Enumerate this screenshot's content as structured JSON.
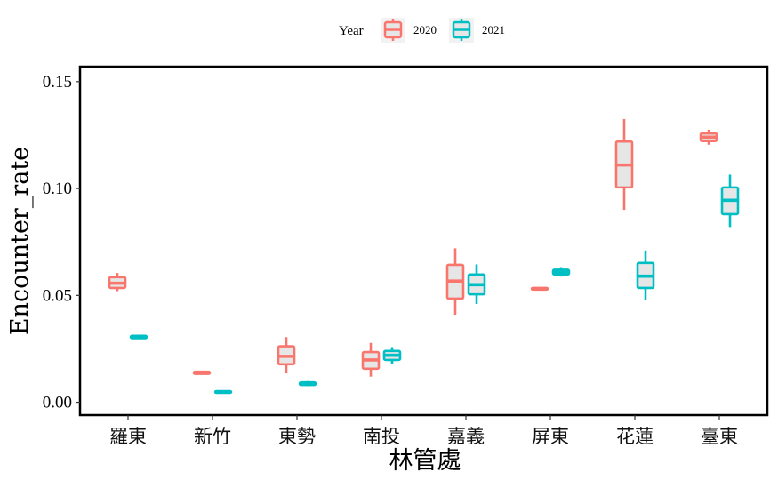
{
  "chart_data": {
    "type": "boxplot",
    "xlabel": "林管處",
    "ylabel": "Encounter_rate",
    "ylim": [
      -0.006,
      0.157
    ],
    "yticks": [
      0.0,
      0.05,
      0.1,
      0.15
    ],
    "ytick_labels": [
      "0.00",
      "0.05",
      "0.10",
      "0.15"
    ],
    "categories": [
      "羅東",
      "新竹",
      "東勢",
      "南投",
      "嘉義",
      "屏東",
      "花蓮",
      "臺東"
    ],
    "legend": {
      "title": "Year",
      "position": "top",
      "entries": [
        {
          "label": "2020",
          "color": "#F8766D"
        },
        {
          "label": "2021",
          "color": "#00BFC4"
        }
      ]
    },
    "series": [
      {
        "name": "2020",
        "color": "#F8766D",
        "boxes": [
          {
            "min": 0.052,
            "q1": 0.0535,
            "median": 0.0557,
            "q3": 0.0585,
            "max": 0.0605
          },
          {
            "min": 0.013,
            "q1": 0.0133,
            "median": 0.0138,
            "q3": 0.0143,
            "max": 0.0146
          },
          {
            "min": 0.0135,
            "q1": 0.0178,
            "median": 0.0215,
            "q3": 0.0262,
            "max": 0.0305
          },
          {
            "min": 0.012,
            "q1": 0.0157,
            "median": 0.0198,
            "q3": 0.0235,
            "max": 0.0278
          },
          {
            "min": 0.041,
            "q1": 0.0485,
            "median": 0.0567,
            "q3": 0.0643,
            "max": 0.072
          },
          {
            "min": 0.0523,
            "q1": 0.0527,
            "median": 0.0531,
            "q3": 0.0535,
            "max": 0.0539
          },
          {
            "min": 0.09,
            "q1": 0.1005,
            "median": 0.111,
            "q3": 0.122,
            "max": 0.1325
          },
          {
            "min": 0.1205,
            "q1": 0.1222,
            "median": 0.124,
            "q3": 0.1258,
            "max": 0.1275
          }
        ]
      },
      {
        "name": "2021",
        "color": "#00BFC4",
        "boxes": [
          {
            "min": 0.0296,
            "q1": 0.03,
            "median": 0.0305,
            "q3": 0.0311,
            "max": 0.0316
          },
          {
            "min": 0.004,
            "q1": 0.0044,
            "median": 0.0048,
            "q3": 0.0052,
            "max": 0.0056
          },
          {
            "min": 0.0076,
            "q1": 0.0081,
            "median": 0.0087,
            "q3": 0.0093,
            "max": 0.0099
          },
          {
            "min": 0.018,
            "q1": 0.0198,
            "median": 0.022,
            "q3": 0.024,
            "max": 0.0258
          },
          {
            "min": 0.046,
            "q1": 0.0505,
            "median": 0.055,
            "q3": 0.0598,
            "max": 0.0645
          },
          {
            "min": 0.0588,
            "q1": 0.0598,
            "median": 0.0608,
            "q3": 0.062,
            "max": 0.0632
          },
          {
            "min": 0.0478,
            "q1": 0.0535,
            "median": 0.059,
            "q3": 0.0652,
            "max": 0.071
          },
          {
            "min": 0.082,
            "q1": 0.088,
            "median": 0.0945,
            "q3": 0.1005,
            "max": 0.1065
          }
        ]
      }
    ],
    "box_fill": "#e6e6e6",
    "panel_border": "#000000",
    "grid": false
  }
}
